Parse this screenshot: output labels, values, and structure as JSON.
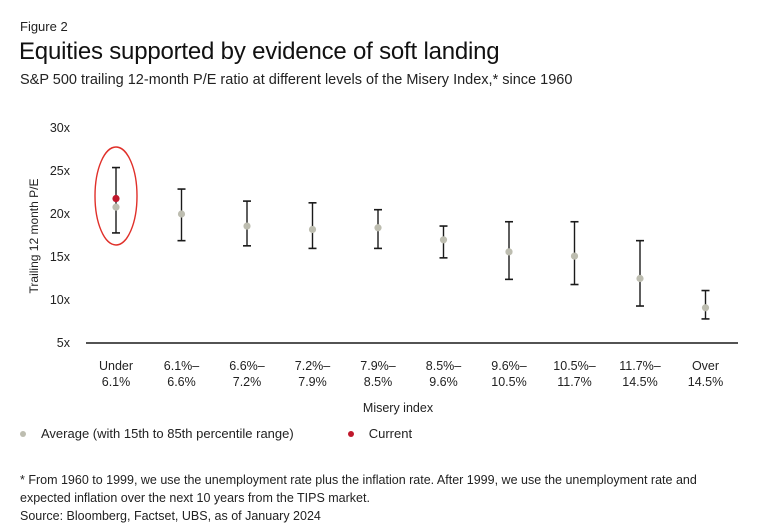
{
  "figure_label": "Figure 2",
  "title": "Equities supported by evidence of soft landing",
  "subtitle": "S&P 500 trailing 12-month P/E ratio at different levels of the Misery Index,* since 1960",
  "footnote": {
    "line1": "* From 1960 to 1999, we use the unemployment rate plus the inflation rate. After 1999, we use the unemployment rate and",
    "line2": "expected inflation over the next 10 years from the TIPS market.",
    "source": "Source: Bloomberg, Factset, UBS, as of January 2024"
  },
  "colors": {
    "average": "#bdbdb0",
    "current": "#c0182c",
    "whisker": "#1a1a1a",
    "highlight": "#e0302a",
    "axis": "#1a1a1a"
  },
  "chart_data": {
    "type": "scatter",
    "xlabel": "Misery index",
    "ylabel": "Trailing 12 month P/E",
    "ylim": [
      5,
      30
    ],
    "yticks": [
      {
        "value": 5,
        "label": "5x"
      },
      {
        "value": 10,
        "label": "10x"
      },
      {
        "value": 15,
        "label": "15x"
      },
      {
        "value": 20,
        "label": "20x"
      },
      {
        "value": 25,
        "label": "25x"
      },
      {
        "value": 30,
        "label": "30x"
      }
    ],
    "grid": false,
    "categories": [
      {
        "line1": "Under",
        "line2": "6.1%"
      },
      {
        "line1": "6.1%–",
        "line2": "6.6%"
      },
      {
        "line1": "6.6%–",
        "line2": "7.2%"
      },
      {
        "line1": "7.2%–",
        "line2": "7.9%"
      },
      {
        "line1": "7.9%–",
        "line2": "8.5%"
      },
      {
        "line1": "8.5%–",
        "line2": "9.6%"
      },
      {
        "line1": "9.6%–",
        "line2": "10.5%"
      },
      {
        "line1": "10.5%–",
        "line2": "11.7%"
      },
      {
        "line1": "11.7%–",
        "line2": "14.5%"
      },
      {
        "line1": "Over",
        "line2": "14.5%"
      }
    ],
    "series": [
      {
        "name": "Average (with 15th to 85th percentile range)",
        "values": [
          20.8,
          20.0,
          18.6,
          18.2,
          18.4,
          17.0,
          15.6,
          15.1,
          12.5,
          9.1
        ],
        "low": [
          17.8,
          16.9,
          16.3,
          16.0,
          16.0,
          14.9,
          12.4,
          11.8,
          9.3,
          7.8
        ],
        "high": [
          25.4,
          22.9,
          21.5,
          21.3,
          20.5,
          18.6,
          19.1,
          19.1,
          16.9,
          11.1
        ]
      },
      {
        "name": "Current",
        "category_index": 0,
        "value": 21.8
      }
    ],
    "legend_position": "bottom-left"
  }
}
